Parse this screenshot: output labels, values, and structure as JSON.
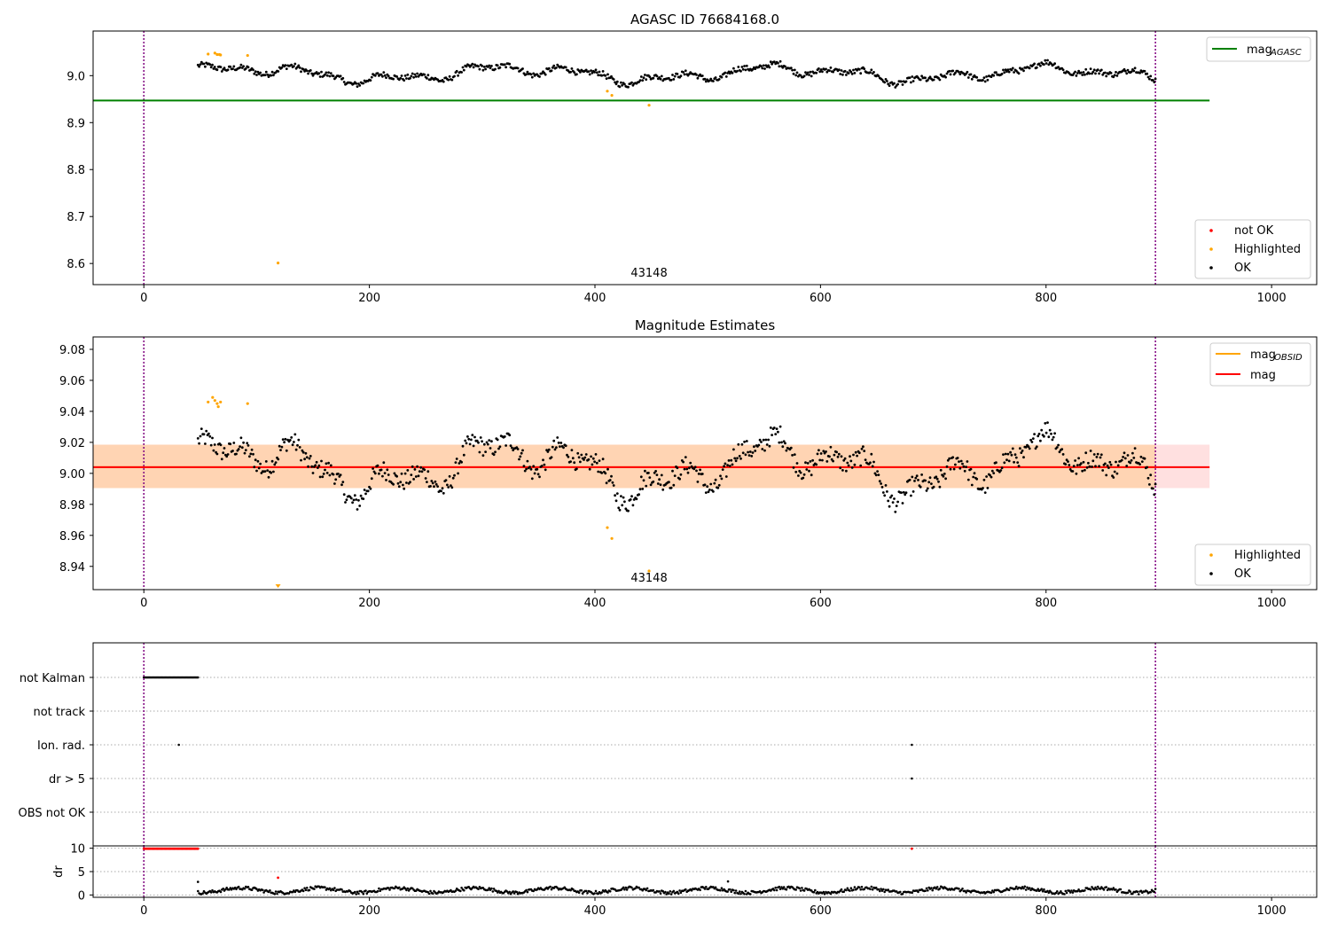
{
  "figure": {
    "title": "AGASC ID 76684168.0",
    "colors": {
      "ok": "#000000",
      "highlighted": "#ffa500",
      "not_ok": "#ff0000",
      "agasc": "#008000",
      "mag": "#ff0000",
      "obs_vline": "#800080"
    }
  },
  "chart_data": [
    {
      "type": "scatter",
      "title": "AGASC ID 76684168.0",
      "xlim": [
        -45,
        1040
      ],
      "ylim": [
        8.555,
        9.095
      ],
      "xticks": [
        0,
        200,
        400,
        600,
        800,
        1000
      ],
      "yticks": [
        8.6,
        8.7,
        8.8,
        8.9,
        9.0
      ],
      "ytick_format": 1,
      "observation_bounds": [
        0,
        897
      ],
      "obsid_label": {
        "text": "43148",
        "x": 448
      },
      "lines": [
        {
          "name": "mag_{AGASC}",
          "label_main": "mag",
          "label_sub": "AGASC",
          "y": 8.947,
          "x": [
            -45,
            945
          ],
          "color": "#008000"
        }
      ],
      "highlighted_points": [
        [
          57,
          9.046
        ],
        [
          63,
          9.048
        ],
        [
          65,
          9.045
        ],
        [
          67,
          9.045
        ],
        [
          68,
          9.044
        ],
        [
          92,
          9.043
        ],
        [
          411,
          8.967
        ],
        [
          415,
          8.958
        ],
        [
          448,
          8.937
        ],
        [
          119,
          8.601
        ]
      ],
      "ok_series": {
        "name": "OK",
        "x_start": 48,
        "x_end": 897,
        "n": 800,
        "baseline": 9.004
      },
      "legend_lines": {
        "position": "upper right",
        "entries": [
          "mag_{AGASC}"
        ]
      },
      "legend_points": {
        "position": "lower right",
        "entries": [
          {
            "label": "not OK",
            "color": "#ff0000"
          },
          {
            "label": "Highlighted",
            "color": "#ffa500"
          },
          {
            "label": "OK",
            "color": "#000000"
          }
        ]
      }
    },
    {
      "type": "scatter",
      "title": "Magnitude Estimates",
      "xlim": [
        -45,
        1040
      ],
      "ylim": [
        8.925,
        9.088
      ],
      "xticks": [
        0,
        200,
        400,
        600,
        800,
        1000
      ],
      "yticks": [
        8.94,
        8.96,
        8.98,
        9.0,
        9.02,
        9.04,
        9.06,
        9.08
      ],
      "ytick_format": 2,
      "observation_bounds": [
        0,
        897
      ],
      "obsid_label": {
        "text": "43148",
        "x": 448
      },
      "mag": {
        "name": "mag",
        "y": 9.004,
        "band": [
          8.9905,
          9.0185
        ],
        "x": [
          -45,
          945
        ],
        "color": "#ff0000"
      },
      "mag_obsid": {
        "name": "mag_{OBSID}",
        "label_main": "mag",
        "label_sub": "OBSID",
        "y": 9.004,
        "band": [
          8.9905,
          9.0185
        ],
        "x": [
          -45,
          897
        ],
        "color": "#ffa500"
      },
      "highlighted_points": [
        [
          57,
          9.046
        ],
        [
          61,
          9.049
        ],
        [
          63,
          9.047
        ],
        [
          65,
          9.045
        ],
        [
          66,
          9.043
        ],
        [
          68,
          9.046
        ],
        [
          92,
          9.045
        ],
        [
          411,
          8.965
        ],
        [
          415,
          8.958
        ],
        [
          448,
          8.937
        ]
      ],
      "below_range_marker": {
        "x": 119
      },
      "ok_series": {
        "name": "OK",
        "x_start": 48,
        "x_end": 897,
        "n": 800,
        "baseline": 9.004
      },
      "legend_lines": {
        "position": "upper right",
        "entries": [
          "mag_{OBSID}",
          "mag"
        ]
      },
      "legend_points": {
        "position": "lower right",
        "entries": [
          {
            "label": "Highlighted",
            "color": "#ffa500"
          },
          {
            "label": "OK",
            "color": "#000000"
          }
        ]
      }
    },
    {
      "type": "scatter",
      "title": "",
      "xlim": [
        -45,
        1040
      ],
      "categories": [
        "not Kalman",
        "not track",
        "Ion. rad.",
        "dr > 5",
        "OBS not OK"
      ],
      "flags": {
        "not Kalman": {
          "x_start": 0,
          "x_end": 48,
          "step": 1
        },
        "not track": {
          "points": []
        },
        "Ion. rad.": {
          "points": [
            31,
            681
          ]
        },
        "dr > 5": {
          "points": [
            681
          ]
        },
        "OBS not OK": {
          "points": []
        }
      },
      "observation_bounds": [
        0,
        897
      ]
    },
    {
      "type": "scatter",
      "title": "",
      "ylabel": "dr",
      "xlim": [
        -45,
        1040
      ],
      "ylim": [
        -0.5,
        10.5
      ],
      "xticks": [
        0,
        200,
        400,
        600,
        800,
        1000
      ],
      "yticks": [
        0,
        5,
        10
      ],
      "red_points": {
        "x_start": 0,
        "x_end": 48,
        "step": 1,
        "y": 9.9,
        "extra": [
          [
            681,
            9.9
          ],
          [
            119,
            3.7
          ]
        ]
      },
      "ok_series": {
        "name": "OK",
        "x_start": 48,
        "x_end": 897,
        "n": 800,
        "baseline": 1.0
      },
      "observation_bounds": [
        0,
        897
      ]
    }
  ]
}
